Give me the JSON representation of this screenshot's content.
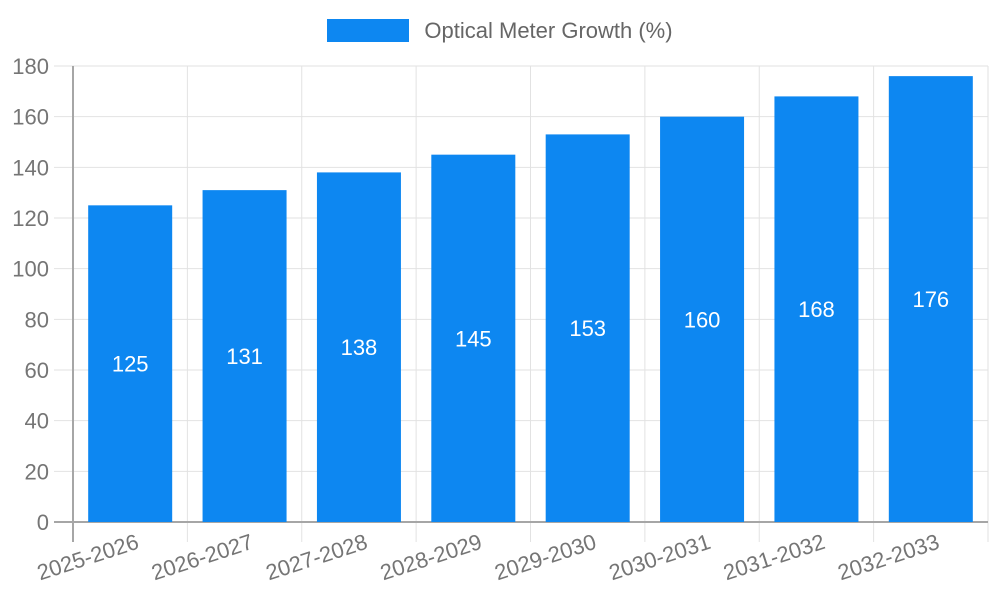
{
  "chart_data": {
    "type": "bar",
    "legend": "Optical Meter Growth (%)",
    "legend_position": "top-center",
    "categories": [
      "2025-2026",
      "2026-2027",
      "2027-2028",
      "2028-2029",
      "2029-2030",
      "2030-2031",
      "2031-2032",
      "2032-2033"
    ],
    "values": [
      125,
      131,
      138,
      145,
      153,
      160,
      168,
      176
    ],
    "yticks": [
      0,
      20,
      40,
      60,
      80,
      100,
      120,
      140,
      160,
      180
    ],
    "ylim": [
      0,
      180
    ],
    "xlabel": "",
    "ylabel": "",
    "grid": true,
    "x_label_rotation_deg": -18,
    "bar_color": "#0d87f1",
    "bar_label_color": "#ffffff",
    "axis_text_color": "#757575",
    "legend_text_color": "#666666",
    "grid_color": "#e2e2e2",
    "axis_line_color": "#a6a6a6"
  }
}
